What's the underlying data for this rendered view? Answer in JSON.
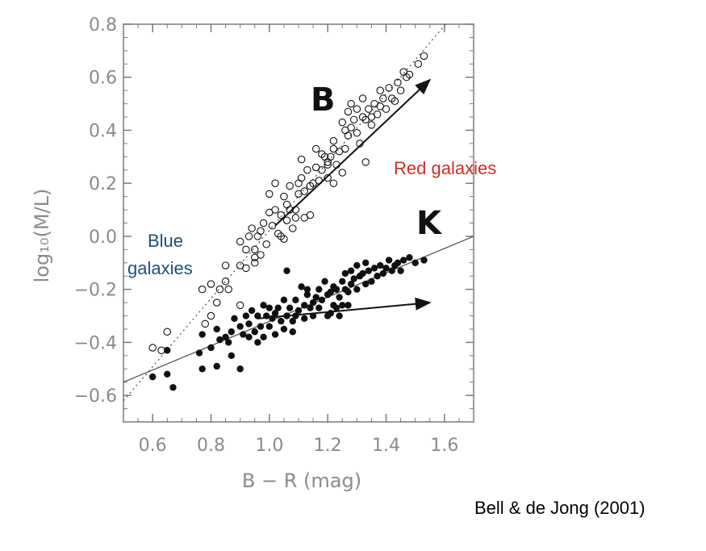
{
  "chart_data": {
    "type": "scatter",
    "xlabel": "B − R (mag)",
    "ylabel": "log₁₀(M/L)",
    "xlim": [
      0.5,
      1.7
    ],
    "ylim": [
      -0.7,
      0.8
    ],
    "xticks": [
      "0.6",
      "0.8",
      "1.0",
      "1.2",
      "1.4",
      "1.6"
    ],
    "yticks": [
      "0.8",
      "0.6",
      "0.4",
      "0.2",
      "0.0",
      "−0.2",
      "−0.4",
      "−0.6"
    ],
    "xtick_values": [
      0.6,
      0.8,
      1.0,
      1.2,
      1.4,
      1.6
    ],
    "ytick_values": [
      0.8,
      0.6,
      0.4,
      0.2,
      0.0,
      -0.2,
      -0.4,
      -0.6
    ],
    "grid": false,
    "series": [
      {
        "name": "B",
        "marker": "open-circle",
        "fit_line": {
          "style": "dotted",
          "from": [
            0.5,
            -0.62
          ],
          "to": [
            1.62,
            0.82
          ]
        },
        "arrow": {
          "from": [
            1.02,
            0.04
          ],
          "to": [
            1.55,
            0.59
          ]
        },
        "points": [
          [
            0.6,
            -0.42
          ],
          [
            0.65,
            -0.36
          ],
          [
            0.63,
            -0.43
          ],
          [
            0.77,
            -0.2
          ],
          [
            0.8,
            -0.18
          ],
          [
            0.78,
            -0.33
          ],
          [
            0.8,
            -0.3
          ],
          [
            0.82,
            -0.25
          ],
          [
            0.83,
            -0.2
          ],
          [
            0.85,
            -0.17
          ],
          [
            0.86,
            -0.2
          ],
          [
            0.85,
            -0.11
          ],
          [
            0.9,
            -0.11
          ],
          [
            0.9,
            -0.26
          ],
          [
            0.92,
            -0.12
          ],
          [
            0.9,
            -0.02
          ],
          [
            0.92,
            -0.05
          ],
          [
            0.93,
            0.0
          ],
          [
            0.94,
            0.03
          ],
          [
            0.95,
            -0.05
          ],
          [
            0.95,
            -0.08
          ],
          [
            0.95,
            -0.1
          ],
          [
            0.96,
            0.0
          ],
          [
            0.97,
            0.02
          ],
          [
            0.97,
            -0.07
          ],
          [
            0.98,
            0.05
          ],
          [
            0.99,
            -0.03
          ],
          [
            1.0,
            0.09
          ],
          [
            1.0,
            0.16
          ],
          [
            1.01,
            0.04
          ],
          [
            1.02,
            0.2
          ],
          [
            1.02,
            0.1
          ],
          [
            1.03,
            0.01
          ],
          [
            1.04,
            0.08
          ],
          [
            1.04,
            0.0
          ],
          [
            1.05,
            0.15
          ],
          [
            1.05,
            -0.01
          ],
          [
            1.06,
            0.12
          ],
          [
            1.06,
            0.06
          ],
          [
            1.07,
            0.1
          ],
          [
            1.07,
            0.19
          ],
          [
            1.08,
            0.03
          ],
          [
            1.09,
            0.07
          ],
          [
            1.09,
            0.1
          ],
          [
            1.1,
            0.2
          ],
          [
            1.1,
            0.16
          ],
          [
            1.11,
            0.22
          ],
          [
            1.11,
            0.29
          ],
          [
            1.12,
            0.17
          ],
          [
            1.12,
            0.07
          ],
          [
            1.13,
            0.25
          ],
          [
            1.14,
            0.19
          ],
          [
            1.14,
            0.08
          ],
          [
            1.15,
            0.2
          ],
          [
            1.16,
            0.26
          ],
          [
            1.16,
            0.33
          ],
          [
            1.17,
            0.21
          ],
          [
            1.18,
            0.31
          ],
          [
            1.18,
            0.25
          ],
          [
            1.19,
            0.3
          ],
          [
            1.2,
            0.28
          ],
          [
            1.2,
            0.22
          ],
          [
            1.21,
            0.3
          ],
          [
            1.22,
            0.33
          ],
          [
            1.22,
            0.36
          ],
          [
            1.23,
            0.27
          ],
          [
            1.24,
            0.32
          ],
          [
            1.25,
            0.24
          ],
          [
            1.26,
            0.33
          ],
          [
            1.26,
            0.4
          ],
          [
            1.27,
            0.47
          ],
          [
            1.27,
            0.38
          ],
          [
            1.28,
            0.41
          ],
          [
            1.28,
            0.5
          ],
          [
            1.29,
            0.44
          ],
          [
            1.3,
            0.39
          ],
          [
            1.3,
            0.48
          ],
          [
            1.31,
            0.35
          ],
          [
            1.32,
            0.45
          ],
          [
            1.32,
            0.52
          ],
          [
            1.33,
            0.44
          ],
          [
            1.33,
            0.28
          ],
          [
            1.34,
            0.48
          ],
          [
            1.35,
            0.42
          ],
          [
            1.36,
            0.5
          ],
          [
            1.37,
            0.46
          ],
          [
            1.38,
            0.55
          ],
          [
            1.38,
            0.49
          ],
          [
            1.39,
            0.52
          ],
          [
            1.4,
            0.48
          ],
          [
            1.41,
            0.56
          ],
          [
            1.42,
            0.52
          ],
          [
            1.43,
            0.51
          ],
          [
            1.44,
            0.58
          ],
          [
            1.45,
            0.55
          ],
          [
            1.46,
            0.62
          ],
          [
            1.47,
            0.6
          ],
          [
            1.48,
            0.61
          ],
          [
            1.51,
            0.65
          ],
          [
            1.53,
            0.68
          ],
          [
            1.25,
            0.43
          ],
          [
            1.35,
            0.45
          ],
          [
            1.22,
            0.2
          ],
          [
            1.2,
            0.27
          ]
        ]
      },
      {
        "name": "K",
        "marker": "filled-circle",
        "fit_line": {
          "style": "solid",
          "from": [
            0.5,
            -0.55
          ],
          "to": [
            1.7,
            0.0
          ]
        },
        "arrow": {
          "from": [
            0.96,
            -0.31
          ],
          "to": [
            1.55,
            -0.25
          ]
        },
        "points": [
          [
            0.6,
            -0.53
          ],
          [
            0.65,
            -0.52
          ],
          [
            0.65,
            -0.43
          ],
          [
            0.67,
            -0.57
          ],
          [
            0.76,
            -0.44
          ],
          [
            0.77,
            -0.37
          ],
          [
            0.77,
            -0.5
          ],
          [
            0.8,
            -0.42
          ],
          [
            0.82,
            -0.35
          ],
          [
            0.82,
            -0.49
          ],
          [
            0.83,
            -0.39
          ],
          [
            0.85,
            -0.38
          ],
          [
            0.86,
            -0.4
          ],
          [
            0.87,
            -0.36
          ],
          [
            0.87,
            -0.45
          ],
          [
            0.88,
            -0.31
          ],
          [
            0.9,
            -0.5
          ],
          [
            0.9,
            -0.34
          ],
          [
            0.91,
            -0.37
          ],
          [
            0.92,
            -0.3
          ],
          [
            0.93,
            -0.33
          ],
          [
            0.93,
            -0.38
          ],
          [
            0.94,
            -0.28
          ],
          [
            0.95,
            -0.36
          ],
          [
            0.96,
            -0.3
          ],
          [
            0.96,
            -0.4
          ],
          [
            0.97,
            -0.34
          ],
          [
            0.98,
            -0.26
          ],
          [
            0.98,
            -0.38
          ],
          [
            0.99,
            -0.3
          ],
          [
            1.0,
            -0.34
          ],
          [
            1.0,
            -0.27
          ],
          [
            1.01,
            -0.31
          ],
          [
            1.02,
            -0.37
          ],
          [
            1.02,
            -0.29
          ],
          [
            1.03,
            -0.27
          ],
          [
            1.04,
            -0.32
          ],
          [
            1.05,
            -0.35
          ],
          [
            1.05,
            -0.24
          ],
          [
            1.06,
            -0.3
          ],
          [
            1.07,
            -0.27
          ],
          [
            1.08,
            -0.32
          ],
          [
            1.08,
            -0.36
          ],
          [
            1.09,
            -0.24
          ],
          [
            1.09,
            -0.3
          ],
          [
            1.1,
            -0.28
          ],
          [
            1.11,
            -0.19
          ],
          [
            1.12,
            -0.26
          ],
          [
            1.12,
            -0.31
          ],
          [
            1.13,
            -0.22
          ],
          [
            1.14,
            -0.27
          ],
          [
            1.15,
            -0.25
          ],
          [
            1.15,
            -0.3
          ],
          [
            1.16,
            -0.23
          ],
          [
            1.17,
            -0.2
          ],
          [
            1.17,
            -0.27
          ],
          [
            1.18,
            -0.24
          ],
          [
            1.19,
            -0.17
          ],
          [
            1.2,
            -0.22
          ],
          [
            1.21,
            -0.29
          ],
          [
            1.21,
            -0.21
          ],
          [
            1.22,
            -0.26
          ],
          [
            1.22,
            -0.19
          ],
          [
            1.23,
            -0.27
          ],
          [
            1.23,
            -0.2
          ],
          [
            1.24,
            -0.23
          ],
          [
            1.25,
            -0.26
          ],
          [
            1.25,
            -0.17
          ],
          [
            1.26,
            -0.2
          ],
          [
            1.26,
            -0.14
          ],
          [
            1.27,
            -0.21
          ],
          [
            1.28,
            -0.13
          ],
          [
            1.28,
            -0.18
          ],
          [
            1.29,
            -0.16
          ],
          [
            1.3,
            -0.11
          ],
          [
            1.3,
            -0.2
          ],
          [
            1.31,
            -0.15
          ],
          [
            1.32,
            -0.14
          ],
          [
            1.33,
            -0.18
          ],
          [
            1.33,
            -0.1
          ],
          [
            1.34,
            -0.13
          ],
          [
            1.35,
            -0.17
          ],
          [
            1.36,
            -0.12
          ],
          [
            1.37,
            -0.15
          ],
          [
            1.38,
            -0.11
          ],
          [
            1.39,
            -0.14
          ],
          [
            1.4,
            -0.12
          ],
          [
            1.41,
            -0.09
          ],
          [
            1.42,
            -0.13
          ],
          [
            1.43,
            -0.11
          ],
          [
            1.44,
            -0.1
          ],
          [
            1.45,
            -0.13
          ],
          [
            1.46,
            -0.09
          ],
          [
            1.48,
            -0.08
          ],
          [
            1.5,
            -0.1
          ],
          [
            1.53,
            -0.09
          ],
          [
            1.06,
            -0.13
          ],
          [
            1.13,
            -0.2
          ],
          [
            1.24,
            -0.3
          ],
          [
            1.27,
            -0.26
          ],
          [
            1.2,
            -0.3
          ]
        ]
      }
    ],
    "annotations": {
      "b_label": "B",
      "k_label": "K",
      "red_label": "Red galaxies",
      "blue_label_line1": "Blue",
      "blue_label_line2": "galaxies"
    },
    "colors": {
      "axis": "#7a7a7a",
      "marker": "#111111",
      "red_text": "#c9302c",
      "blue_text": "#1d4f7a"
    }
  },
  "citation": "Bell & de Jong (2001)"
}
